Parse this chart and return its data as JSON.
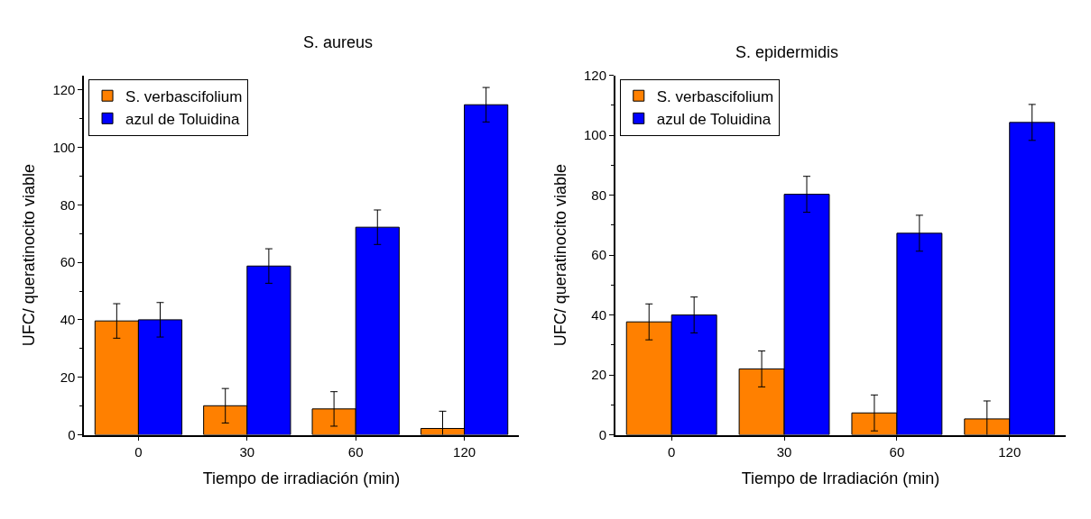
{
  "chart_data": [
    {
      "type": "bar",
      "title": "S. aureus",
      "xlabel": "Tiempo de irradiación (min)",
      "ylabel": "UFC/ queratinocito viable",
      "categories": [
        "0",
        "30",
        "60",
        "120"
      ],
      "ylim": [
        0,
        125
      ],
      "yticks": [
        0,
        20,
        40,
        60,
        80,
        100,
        120
      ],
      "legend": "top left",
      "series": [
        {
          "name": "S. verbascifolium",
          "color": "#ff8000",
          "values": [
            39.6,
            10.1,
            9.0,
            2.2
          ],
          "errors": [
            6,
            6,
            6,
            6
          ]
        },
        {
          "name": "azul de Toluidina",
          "color": "#0000ff",
          "values": [
            40.0,
            58.7,
            72.2,
            114.8
          ],
          "errors": [
            6,
            6,
            6,
            6
          ]
        }
      ]
    },
    {
      "type": "bar",
      "title": "S. epidermidis",
      "xlabel": "Tiempo de Irradiación (min)",
      "ylabel": "UFC/ queratinocito viable",
      "categories": [
        "0",
        "30",
        "60",
        "120"
      ],
      "ylim": [
        0,
        120
      ],
      "yticks": [
        0,
        20,
        40,
        60,
        80,
        100,
        120
      ],
      "legend": "top left",
      "series": [
        {
          "name": "S. verbascifolium",
          "color": "#ff8000",
          "values": [
            37.7,
            22.0,
            7.3,
            5.3
          ],
          "errors": [
            6,
            6,
            6,
            6
          ]
        },
        {
          "name": "azul de Toluidina",
          "color": "#0000ff",
          "values": [
            40.0,
            80.3,
            67.3,
            104.3
          ],
          "errors": [
            6,
            6,
            6,
            6
          ]
        }
      ]
    }
  ]
}
